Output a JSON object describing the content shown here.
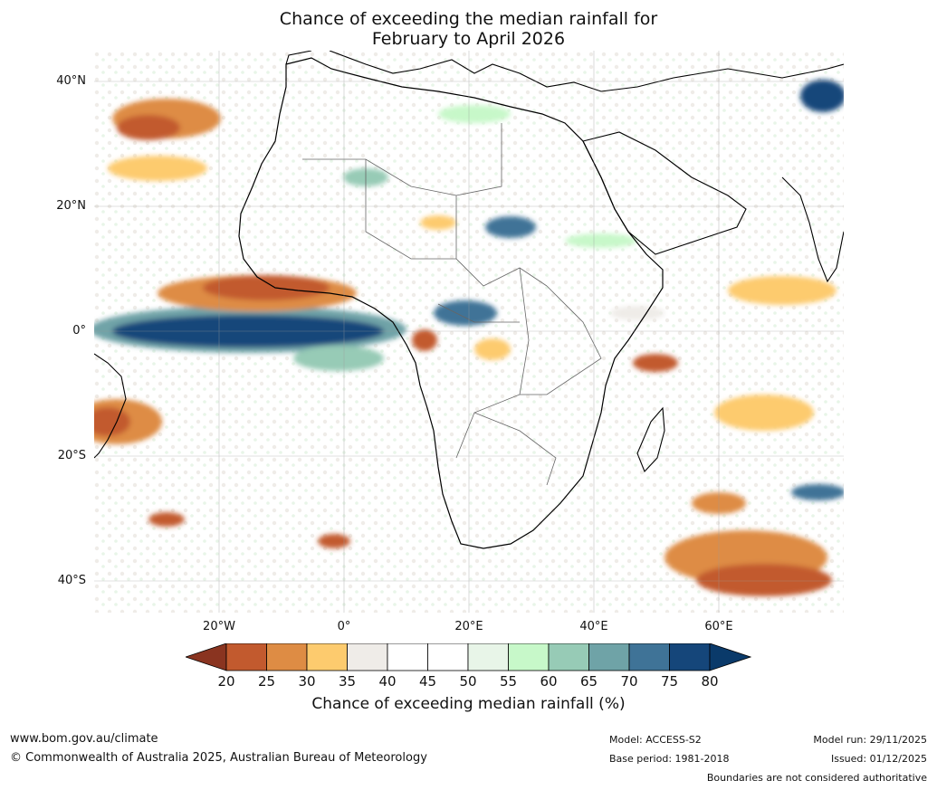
{
  "title_line1": "Chance of exceeding the median rainfall for",
  "title_line2": "February to April 2026",
  "lat_ticks": [
    "40°N",
    "20°N",
    "0°",
    "20°S",
    "40°S"
  ],
  "lon_ticks": [
    "20°W",
    "0°",
    "20°E",
    "40°E",
    "60°E"
  ],
  "colorbar": {
    "title": "Chance of exceeding median rainfall (%)",
    "labels": [
      "20",
      "25",
      "30",
      "35",
      "40",
      "45",
      "50",
      "55",
      "60",
      "65",
      "70",
      "75",
      "80"
    ],
    "colors": [
      "#a0432a",
      "#c25a2e",
      "#de8c44",
      "#fdcb6e",
      "#efece8",
      "#ffffff",
      "#ffffff",
      "#e8f5e8",
      "#c7f8c9",
      "#97cbb6",
      "#6fa3a7",
      "#3f7397",
      "#15467a"
    ]
  },
  "footer": {
    "website": "www.bom.gov.au/climate",
    "copyright": "© Commonwealth of Australia 2025, Australian Bureau of Meteorology",
    "model": "Model: ACCESS-S2",
    "base_period": "Base period: 1981-2018",
    "model_run": "Model run: 29/11/2025",
    "issued": "Issued: 01/12/2025",
    "disclaimer": "Boundaries are not considered authoritative"
  }
}
